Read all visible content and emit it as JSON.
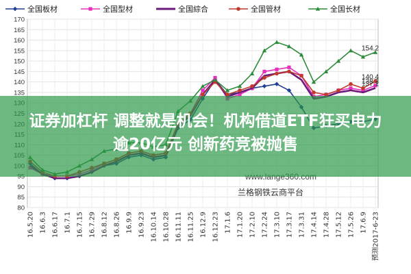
{
  "headline": {
    "line1": "证券加杠杆 调整就是机会！机构借道ETF狂买电力",
    "line2": "逾20亿元 创新药竞被抛售"
  },
  "chart_data": {
    "type": "line",
    "title": "",
    "xlabel": "",
    "ylabel": "",
    "ylim": [
      80,
      170
    ],
    "yticks": [
      80,
      85,
      90,
      95,
      100,
      105,
      110,
      115,
      120,
      125,
      130,
      135,
      140,
      145,
      150,
      155,
      160,
      165,
      170
    ],
    "grid": true,
    "legend_position": "top",
    "categories": [
      "16.5.20",
      "16.6.3",
      "16.6.17",
      "16.7.1",
      "16.7.15",
      "16.7.29",
      "16.8.12",
      "16.8.26",
      "16.9.9",
      "16.9.23",
      "16.10.14",
      "16.10.28",
      "16.11.11",
      "16.11.25",
      "16.12.9",
      "16.12.23",
      "17.1.6",
      "17.1.20",
      "17.2.10",
      "17.2.24",
      "17.3.10",
      "17.3.17",
      "17.3.31",
      "17.4.14",
      "17.4.28",
      "17.5.12",
      "17.5.26",
      "17.6.9",
      "预测2017-6-23"
    ],
    "series": [
      {
        "name": "全国板材",
        "color": "#1f3f95",
        "marker": "diamond",
        "values": [
          101,
          96,
          94,
          94,
          95,
          97,
          100,
          101,
          104,
          105,
          103,
          104,
          118,
          122,
          132,
          141,
          134,
          135,
          137,
          138,
          139,
          136,
          128,
          118,
          119,
          120,
          121,
          121,
          122.3
        ],
        "end_label": ""
      },
      {
        "name": "全国型材",
        "color": "#e62fbe",
        "marker": "square",
        "values": [
          99,
          96,
          95,
          95,
          96,
          98,
          101,
          103,
          106,
          107,
          105,
          106,
          120,
          125,
          136,
          142,
          132,
          134,
          137,
          145,
          146,
          147,
          143,
          133,
          134,
          136,
          137,
          136,
          138.3
        ],
        "end_label": "138.3"
      },
      {
        "name": "全国綜合",
        "color": "#6b1a7a",
        "marker": "none",
        "values": [
          100,
          96,
          94,
          94,
          95,
          97,
          100,
          102,
          105,
          106,
          104,
          105,
          119,
          124,
          134,
          141,
          133,
          135,
          137,
          143,
          144,
          145,
          141,
          132,
          133,
          135,
          136,
          135,
          137.1
        ],
        "end_label": "137.1"
      },
      {
        "name": "全国管材",
        "color": "#c0392b",
        "marker": "circle",
        "values": [
          102,
          97,
          95,
          95,
          97,
          99,
          101,
          103,
          106,
          107,
          105,
          106,
          120,
          125,
          134,
          140,
          134,
          136,
          138,
          142,
          144,
          145,
          143,
          135,
          134,
          136,
          139,
          137,
          140.4
        ],
        "end_label": "140.4"
      },
      {
        "name": "全国长材",
        "color": "#2e8b3a",
        "marker": "triangle",
        "values": [
          104,
          98,
          96,
          97,
          100,
          103,
          107,
          108,
          111,
          111,
          109,
          110,
          126,
          131,
          138,
          141,
          136,
          138,
          144,
          155,
          159,
          157,
          153,
          140,
          145,
          150,
          155,
          152,
          154.2
        ],
        "end_label": "154.2"
      }
    ],
    "watermark": {
      "url": "www.lange360.com",
      "source": "兰格钢铁云商平台"
    }
  }
}
